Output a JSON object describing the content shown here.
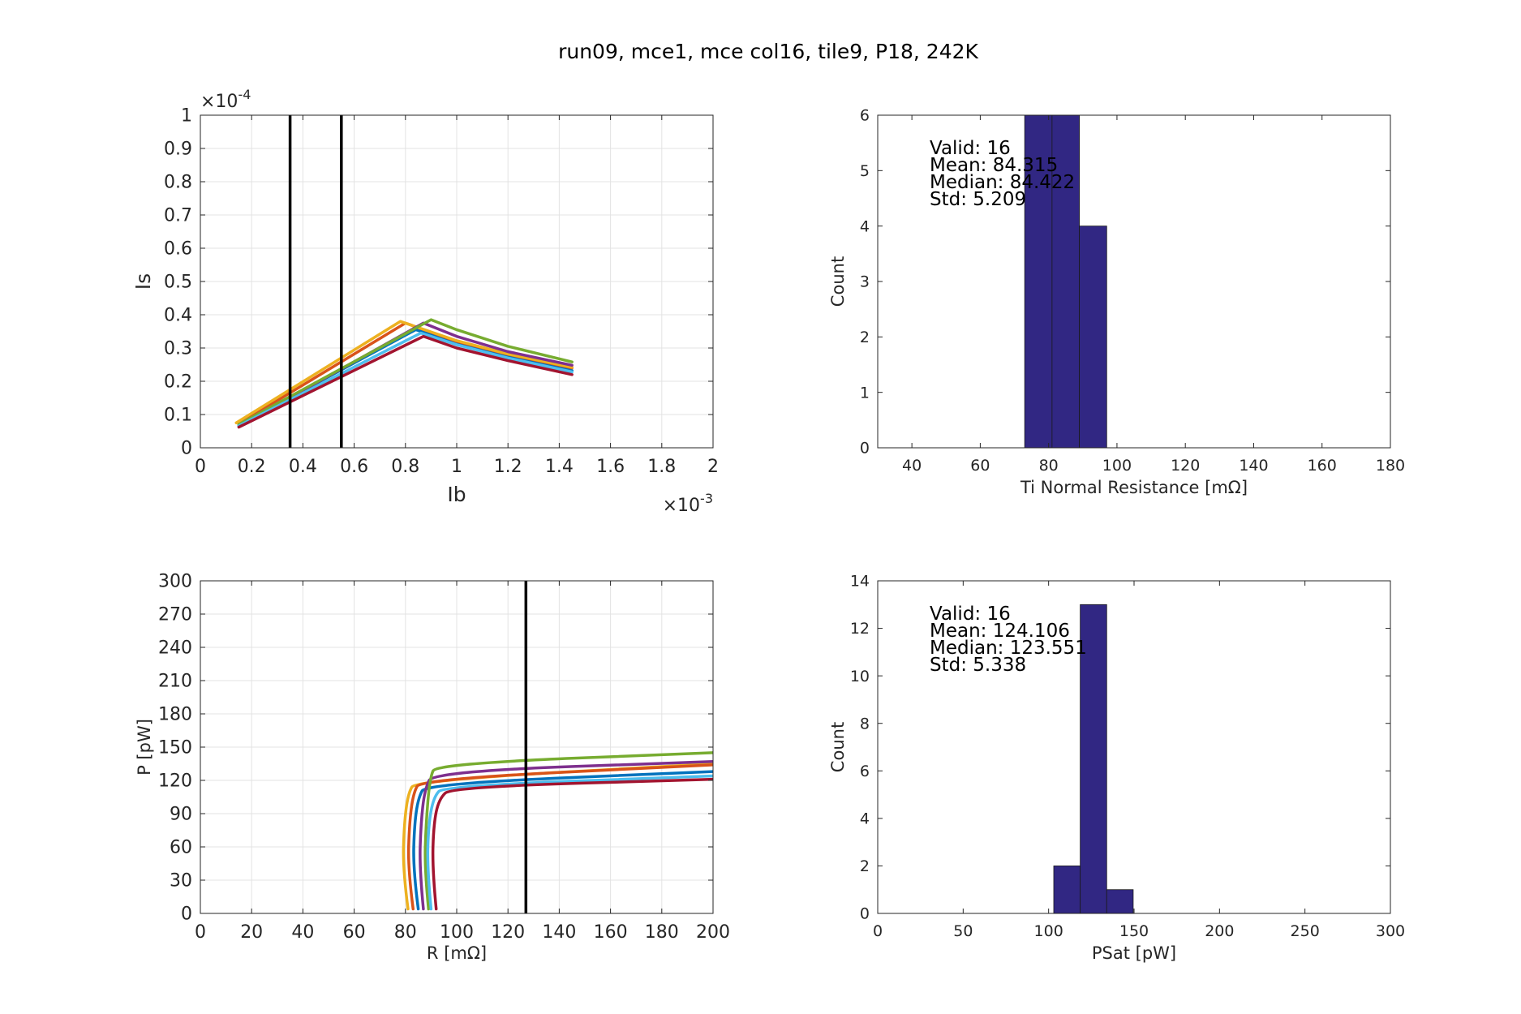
{
  "figure": {
    "title": "run09, mce1, mce col16, tile9, P18, 242K"
  },
  "chart_data": [
    {
      "type": "line",
      "id": "ivs",
      "xlabel": "Ib",
      "ylabel": "Is",
      "x_exponent": "×10-3",
      "y_exponent": "×10-4",
      "xlim": [
        0,
        2
      ],
      "ylim": [
        0,
        1
      ],
      "xticks": [
        0,
        0.2,
        0.4,
        0.6,
        0.8,
        1,
        1.2,
        1.4,
        1.6,
        1.8,
        2
      ],
      "xticklabels": [
        "0",
        "0.2",
        "0.4",
        "0.6",
        "0.8",
        "1",
        "1.2",
        "1.4",
        "1.6",
        "1.8",
        "2"
      ],
      "yticks": [
        0,
        0.1,
        0.2,
        0.3,
        0.4,
        0.5,
        0.6,
        0.7,
        0.8,
        0.9,
        1
      ],
      "yticklabels": [
        "0",
        "0.1",
        "0.2",
        "0.3",
        "0.4",
        "0.5",
        "0.6",
        "0.7",
        "0.8",
        "0.9",
        "1"
      ],
      "grid": true,
      "vlines": [
        0.35,
        0.55
      ],
      "series": [
        {
          "color": "#0072bd",
          "points": [
            [
              0.15,
              0.068
            ],
            [
              0.84,
              0.355
            ],
            [
              1.0,
              0.318
            ],
            [
              1.2,
              0.276
            ],
            [
              1.45,
              0.232
            ]
          ]
        },
        {
          "color": "#d95319",
          "points": [
            [
              0.15,
              0.072
            ],
            [
              0.8,
              0.375
            ],
            [
              1.0,
              0.32
            ],
            [
              1.2,
              0.281
            ],
            [
              1.45,
              0.24
            ]
          ]
        },
        {
          "color": "#edb120",
          "points": [
            [
              0.14,
              0.075
            ],
            [
              0.78,
              0.38
            ],
            [
              1.0,
              0.322
            ],
            [
              1.2,
              0.282
            ],
            [
              1.45,
              0.242
            ]
          ]
        },
        {
          "color": "#7e2f8e",
          "points": [
            [
              0.15,
              0.065
            ],
            [
              0.87,
              0.375
            ],
            [
              1.0,
              0.335
            ],
            [
              1.2,
              0.289
            ],
            [
              1.45,
              0.248
            ]
          ]
        },
        {
          "color": "#77ac30",
          "points": [
            [
              0.15,
              0.07
            ],
            [
              0.9,
              0.385
            ],
            [
              1.0,
              0.355
            ],
            [
              1.2,
              0.305
            ],
            [
              1.45,
              0.258
            ]
          ]
        },
        {
          "color": "#4dbeee",
          "points": [
            [
              0.15,
              0.066
            ],
            [
              0.86,
              0.345
            ],
            [
              1.0,
              0.31
            ],
            [
              1.2,
              0.27
            ],
            [
              1.45,
              0.228
            ]
          ]
        },
        {
          "color": "#a2142f",
          "points": [
            [
              0.15,
              0.062
            ],
            [
              0.87,
              0.335
            ],
            [
              1.0,
              0.3
            ],
            [
              1.2,
              0.262
            ],
            [
              1.45,
              0.22
            ]
          ]
        }
      ]
    },
    {
      "type": "bar",
      "id": "rn_hist",
      "xlabel": "Ti Normal Resistance [mΩ]",
      "ylabel": "Count",
      "xlim": [
        30,
        180
      ],
      "ylim": [
        0,
        6
      ],
      "xticks": [
        40,
        60,
        80,
        100,
        120,
        140,
        160,
        180
      ],
      "yticks": [
        0,
        1,
        2,
        3,
        4,
        5,
        6
      ],
      "bar_color": "#312783",
      "bins": [
        {
          "start": 73.0,
          "end": 81.0,
          "count": 6
        },
        {
          "start": 81.0,
          "end": 89.0,
          "count": 6
        },
        {
          "start": 89.0,
          "end": 97.0,
          "count": 4
        }
      ],
      "annotation": [
        "Valid: 16",
        "Mean: 84.315",
        "Median: 84.422",
        "Std: 5.209"
      ]
    },
    {
      "type": "line",
      "id": "prs",
      "xlabel": "R [mΩ]",
      "ylabel": "P [pW]",
      "xlim": [
        0,
        200
      ],
      "ylim": [
        0,
        300
      ],
      "xticks": [
        0,
        20,
        40,
        60,
        80,
        100,
        120,
        140,
        160,
        180,
        200
      ],
      "yticks": [
        0,
        30,
        60,
        90,
        120,
        150,
        180,
        210,
        240,
        270,
        300
      ],
      "grid": true,
      "vlines": [
        127
      ],
      "series": [
        {
          "color": "#edb120",
          "points": [
            [
              81,
              4
            ],
            [
              79,
              40
            ],
            [
              79.5,
              80
            ],
            [
              81,
              108
            ],
            [
              84,
              120
            ],
            [
              200,
              135
            ]
          ]
        },
        {
          "color": "#d95319",
          "points": [
            [
              83,
              4
            ],
            [
              81,
              40
            ],
            [
              81.5,
              80
            ],
            [
              83,
              108
            ],
            [
              86,
              121
            ],
            [
              200,
              134
            ]
          ]
        },
        {
          "color": "#0072bd",
          "points": [
            [
              85,
              4
            ],
            [
              83,
              40
            ],
            [
              83.5,
              80
            ],
            [
              85,
              104
            ],
            [
              88,
              117
            ],
            [
              200,
              128
            ]
          ]
        },
        {
          "color": "#7e2f8e",
          "points": [
            [
              87,
              4
            ],
            [
              85.5,
              40
            ],
            [
              86,
              80
            ],
            [
              87.5,
              112
            ],
            [
              91,
              128
            ],
            [
              200,
              137
            ]
          ]
        },
        {
          "color": "#77ac30",
          "points": [
            [
              89,
              4
            ],
            [
              87.5,
              40
            ],
            [
              88,
              80
            ],
            [
              89.5,
              122
            ],
            [
              92,
              135
            ],
            [
              200,
              145
            ]
          ]
        },
        {
          "color": "#4dbeee",
          "points": [
            [
              90,
              4
            ],
            [
              88.5,
              40
            ],
            [
              89,
              80
            ],
            [
              91,
              105
            ],
            [
              95,
              115
            ],
            [
              200,
              124
            ]
          ]
        },
        {
          "color": "#a2142f",
          "points": [
            [
              92,
              4
            ],
            [
              90.5,
              40
            ],
            [
              91,
              80
            ],
            [
              93,
              103
            ],
            [
              98,
              114
            ],
            [
              200,
              121
            ]
          ]
        }
      ]
    },
    {
      "type": "bar",
      "id": "psat_hist",
      "xlabel": "PSat [pW]",
      "ylabel": "Count",
      "xlim": [
        0,
        300
      ],
      "ylim": [
        0,
        14
      ],
      "xticks": [
        0,
        50,
        100,
        150,
        200,
        250,
        300
      ],
      "yticks": [
        0,
        2,
        4,
        6,
        8,
        10,
        12,
        14
      ],
      "bar_color": "#312783",
      "bins": [
        {
          "start": 103.0,
          "end": 118.5,
          "count": 2
        },
        {
          "start": 118.5,
          "end": 134.0,
          "count": 13
        },
        {
          "start": 134.0,
          "end": 149.5,
          "count": 1
        }
      ],
      "annotation": [
        "Valid: 16",
        "Mean: 124.106",
        "Median: 123.551",
        "Std: 5.338"
      ]
    }
  ]
}
